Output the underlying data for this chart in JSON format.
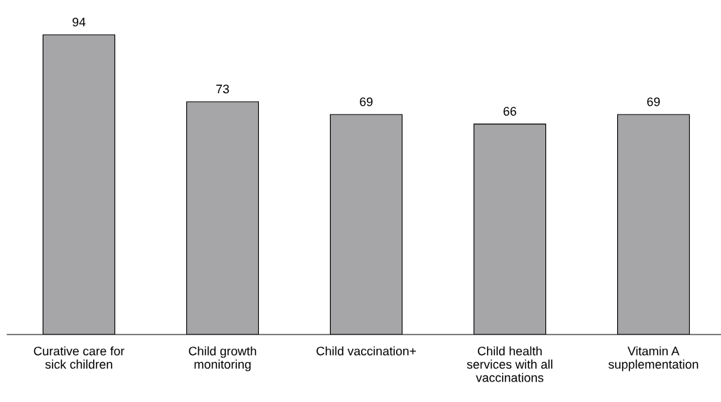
{
  "chart_data": {
    "type": "bar",
    "categories": [
      "Curative care for\nsick children",
      "Child growth\nmonitoring",
      "Child vaccination+",
      "Child health\nservices with all\nvaccinations",
      "Vitamin A\nsupplementation"
    ],
    "values": [
      94,
      73,
      69,
      66,
      69
    ],
    "color": "#a6a6a9",
    "data_labels": true,
    "grid": false,
    "legend": false
  }
}
